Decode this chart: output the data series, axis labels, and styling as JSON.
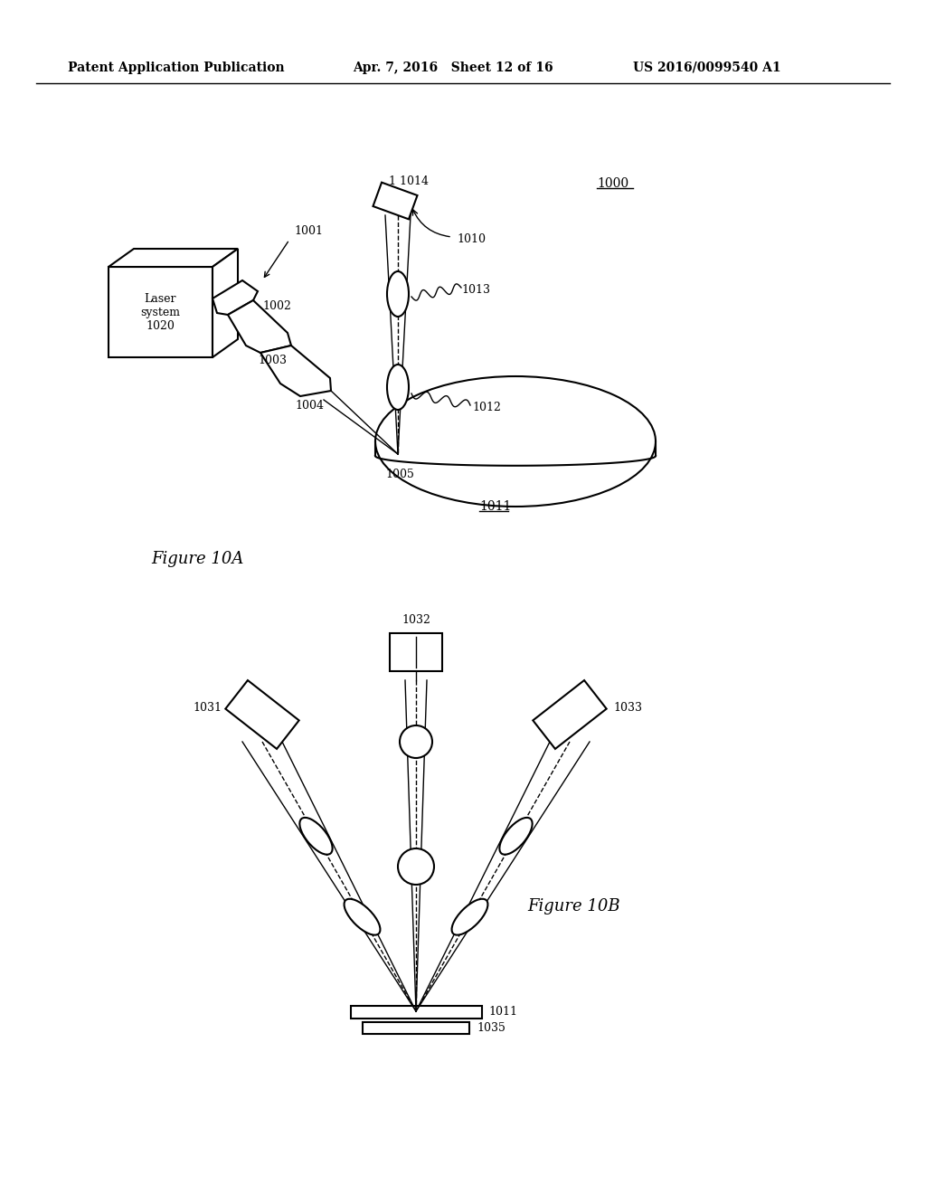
{
  "background_color": "#ffffff",
  "header_left": "Patent Application Publication",
  "header_mid": "Apr. 7, 2016   Sheet 12 of 16",
  "header_right": "US 2016/0099540 A1",
  "fig10a_label": "Figure 10A",
  "fig10b_label": "Figure 10B",
  "ref_1000": "1000",
  "ref_1001": "1001",
  "ref_1002": "1002",
  "ref_1003": "1003",
  "ref_1004": "1004",
  "ref_1005": "1005",
  "ref_1010": "1010",
  "ref_1011": "1011",
  "ref_1012": "1012",
  "ref_1013": "1013",
  "ref_1014": "1 1014",
  "ref_1020_text": "Laser\nsystem\n1020",
  "ref_1031": "1031",
  "ref_1032": "1032",
  "ref_1033": "1033",
  "ref_1035": "1035",
  "ref_1011b": "1011"
}
